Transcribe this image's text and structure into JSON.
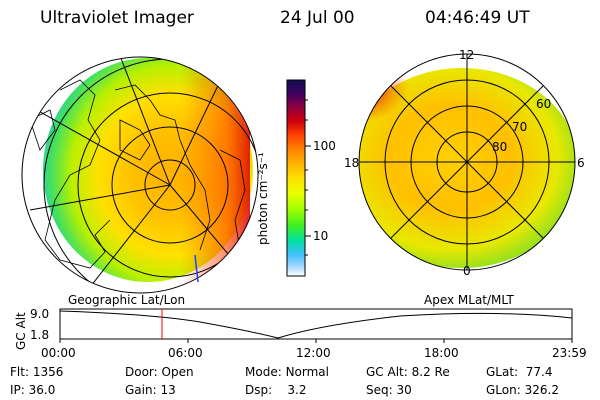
{
  "header": {
    "title": "Ultraviolet Imager",
    "date": "24 Jul 00",
    "time": "04:46:49 UT"
  },
  "colorbar": {
    "unit_label": "photon cm⁻²s⁻¹",
    "ticks": [
      "100",
      "10"
    ],
    "colors": [
      "#101050",
      "#400060",
      "#900040",
      "#d00010",
      "#ff4000",
      "#ff8000",
      "#ffb000",
      "#ffe000",
      "#e8ff00",
      "#a0ff00",
      "#40f020",
      "#00e0a0",
      "#40c0ff",
      "#a0d8ff",
      "#ffffff"
    ]
  },
  "left_map": {
    "caption": "Geographic Lat/Lon"
  },
  "right_map": {
    "caption": "Apex MLat/MLT",
    "mlt_labels": {
      "top": "12",
      "bottom": "0",
      "left": "18",
      "right": "6"
    },
    "lat_labels": [
      "60",
      "70",
      "80"
    ]
  },
  "altitude_plot": {
    "ylabel": "GC Alt",
    "yticks": [
      "9.0",
      "1.8"
    ],
    "xticks": [
      "00:00",
      "06:00",
      "12:00",
      "18:00",
      "23:59"
    ],
    "marker_time": "04:46"
  },
  "stats": {
    "flt_label": "Flt:",
    "flt": "1356",
    "ip_label": "IP:",
    "ip": "36.0",
    "door_label": "Door:",
    "door": "Open",
    "gain_label": "Gain:",
    "gain": "13",
    "mode_label": "Mode:",
    "mode": "Normal",
    "dsp_label": "Dsp:",
    "dsp": "3.2",
    "gcalt_label": "GC Alt:",
    "gcalt": "8.2 Re",
    "seq_label": "Seq:",
    "seq": "30",
    "glat_label": "GLat:",
    "glat": "77.4",
    "glon_label": "GLon:",
    "glon": "326.2"
  }
}
